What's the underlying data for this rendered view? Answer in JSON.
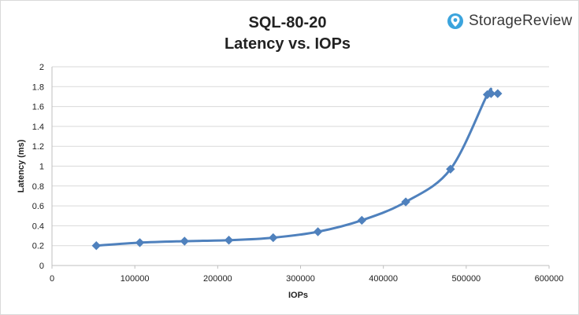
{
  "chart_data": {
    "type": "line",
    "title": "SQL-80-20",
    "subtitle": "Latency vs. IOPs",
    "xlabel": "IOPs",
    "ylabel": "Latency (ms)",
    "xlim": [
      0,
      600000
    ],
    "ylim": [
      0,
      2
    ],
    "xticks": [
      0,
      100000,
      200000,
      300000,
      400000,
      500000,
      600000
    ],
    "yticks": [
      0,
      0.2,
      0.4,
      0.6,
      0.8,
      1,
      1.2,
      1.4,
      1.6,
      1.8,
      2
    ],
    "grid": true,
    "series_color": "#4f81bd",
    "gridline_color": "#d9d9d9",
    "x": [
      53500,
      106000,
      160000,
      213500,
      267000,
      321000,
      374000,
      427000,
      481000,
      525500,
      530000,
      538000
    ],
    "y": [
      0.2,
      0.23,
      0.245,
      0.255,
      0.28,
      0.34,
      0.455,
      0.64,
      0.97,
      1.72,
      1.73,
      1.73
    ]
  },
  "brand": {
    "name": "StorageReview",
    "icon": "storagereview-logo-icon",
    "accent": "#3ba4dd"
  }
}
